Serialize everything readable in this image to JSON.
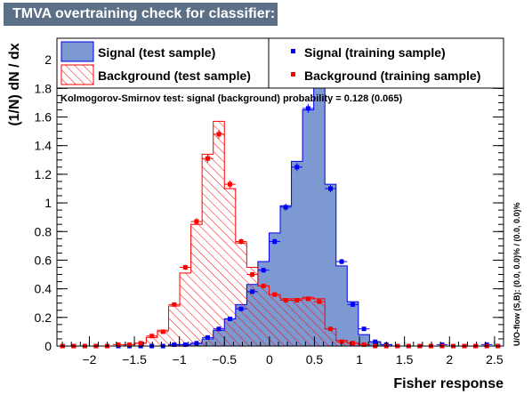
{
  "title": "TMVA overtraining check for classifier: Fisher",
  "colors": {
    "signal_fill": "#7d99d1",
    "signal_line": "#0000ee",
    "background_line": "#ff0000",
    "signal_marker": "#0000ff",
    "background_marker": "#ff0000",
    "title_bg": "#5b6f86"
  },
  "legend": {
    "sig_test": "Signal (test sample)",
    "sig_train": "Signal (training sample)",
    "bkg_test": "Background (test sample)",
    "bkg_train": "Background (training sample)"
  },
  "ks_text": "Kolmogorov-Smirnov test: signal (background) probability = 0.128 (0.065)",
  "overflow_text": "U/O-flow (S,B): (0.0, 0.0)% / (0.0, 0.0)%",
  "chart_data": {
    "type": "histogram",
    "xlabel": "Fisher response",
    "ylabel": "(1/N) dN / dx",
    "xlim": [
      -2.36,
      2.6
    ],
    "ylim": [
      0,
      2.15
    ],
    "x_ticks": [
      -2,
      -1.5,
      -1,
      -0.5,
      0,
      0.5,
      1,
      1.5,
      2,
      2.5
    ],
    "x_tick_labels": [
      "−2",
      "−1.5",
      "−1",
      "−0.5",
      "0",
      "0.5",
      "1",
      "1.5",
      "2",
      "2.5"
    ],
    "y_ticks": [
      0,
      0.2,
      0.4,
      0.6,
      0.8,
      1,
      1.2,
      1.4,
      1.6,
      1.8,
      2
    ],
    "y_tick_labels": [
      "0",
      "0.2",
      "0.4",
      "0.6",
      "0.8",
      "1",
      "1.2",
      "1.4",
      "1.6",
      "1.8",
      "2"
    ],
    "bin_edges": [
      -2.36,
      -2.236,
      -2.112,
      -1.988,
      -1.864,
      -1.74,
      -1.616,
      -1.492,
      -1.368,
      -1.244,
      -1.12,
      -0.996,
      -0.872,
      -0.748,
      -0.624,
      -0.5,
      -0.376,
      -0.252,
      -0.128,
      -0.004,
      0.12,
      0.244,
      0.368,
      0.492,
      0.616,
      0.74,
      0.864,
      0.988,
      1.112,
      1.236,
      1.36,
      1.484,
      1.608,
      1.732,
      1.856,
      1.98,
      2.104,
      2.228,
      2.352,
      2.476,
      2.6
    ],
    "series": [
      {
        "name": "Signal (test sample)",
        "style": "filled",
        "values": [
          0,
          0,
          0,
          0,
          0,
          0,
          0,
          0,
          0,
          0,
          0.01,
          0.01,
          0.02,
          0.05,
          0.11,
          0.19,
          0.29,
          0.43,
          0.59,
          0.79,
          0.98,
          1.29,
          1.65,
          2.05,
          1.13,
          0.56,
          0.31,
          0.08,
          0.03,
          0.01,
          0,
          0,
          0,
          0,
          0,
          0,
          0,
          0,
          0,
          0
        ]
      },
      {
        "name": "Background (test sample)",
        "style": "hatched",
        "values": [
          0,
          0,
          0,
          0,
          0,
          0,
          0.01,
          0.02,
          0.06,
          0.11,
          0.28,
          0.51,
          0.85,
          1.34,
          1.57,
          1.1,
          0.72,
          0.55,
          0.42,
          0.36,
          0.33,
          0.33,
          0.34,
          0.33,
          0.12,
          0.04,
          0.02,
          0.01,
          0,
          0,
          0,
          0,
          0,
          0,
          0,
          0,
          0,
          0,
          0,
          0
        ]
      },
      {
        "name": "Signal (training sample)",
        "style": "markers",
        "values": [
          0,
          0,
          0,
          0,
          0,
          0,
          0,
          0,
          0,
          0,
          0.01,
          0.01,
          0.02,
          0.06,
          0.12,
          0.19,
          0.26,
          0.38,
          0.53,
          0.73,
          0.97,
          1.25,
          1.66,
          1.98,
          1.1,
          0.59,
          0.29,
          0.12,
          0.03,
          0.01,
          0,
          0,
          0,
          0,
          0.01,
          0,
          0,
          0,
          0.01,
          0
        ]
      },
      {
        "name": "Background (training sample)",
        "style": "markers",
        "values": [
          0,
          0,
          0,
          0,
          0,
          0.01,
          0.01,
          0.02,
          0.07,
          0.1,
          0.29,
          0.55,
          0.87,
          1.31,
          1.48,
          1.13,
          0.73,
          0.5,
          0.42,
          0.36,
          0.32,
          0.32,
          0.33,
          0.31,
          0.12,
          0.03,
          0.02,
          0.01,
          0,
          0,
          0,
          0,
          0,
          0,
          0,
          0,
          0,
          0,
          0,
          0
        ]
      }
    ]
  }
}
